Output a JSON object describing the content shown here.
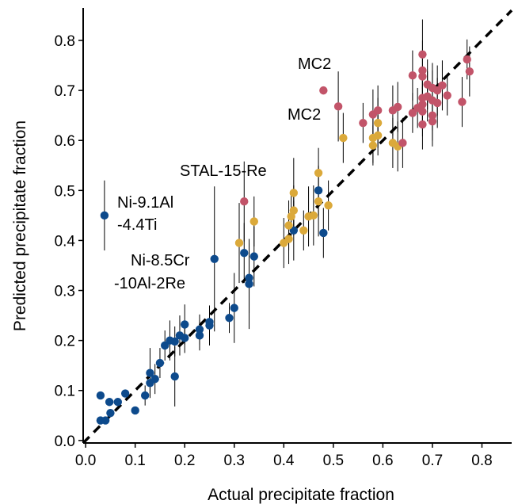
{
  "chart_data": {
    "type": "scatter",
    "title": "",
    "xlabel": "Actual precipitate fraction",
    "ylabel": "Predicted precipitate fraction",
    "xlim": [
      -0.005,
      0.86
    ],
    "ylim": [
      -0.005,
      0.865
    ],
    "xticks": [
      "0.0",
      "0.1",
      "0.2",
      "0.3",
      "0.4",
      "0.5",
      "0.6",
      "0.7",
      "0.8"
    ],
    "yticks": [
      "0.0",
      "0.1",
      "0.2",
      "0.3",
      "0.4",
      "0.5",
      "0.6",
      "0.7",
      "0.8"
    ],
    "grid": false,
    "legend": "none",
    "reference_line": "y = x (dashed)",
    "colors": {
      "blue": "#0d4a8c",
      "yellow": "#dba93a",
      "red": "#c25469",
      "line": "#000000"
    },
    "series": [
      {
        "color": "blue",
        "points": [
          {
            "x": 0.038,
            "y": 0.45,
            "e": 0.07
          },
          {
            "x": 0.03,
            "y": 0.09,
            "e": 0
          },
          {
            "x": 0.03,
            "y": 0.04,
            "e": 0
          },
          {
            "x": 0.04,
            "y": 0.04,
            "e": 0
          },
          {
            "x": 0.048,
            "y": 0.077,
            "e": 0
          },
          {
            "x": 0.05,
            "y": 0.055,
            "e": 0
          },
          {
            "x": 0.065,
            "y": 0.077,
            "e": 0
          },
          {
            "x": 0.08,
            "y": 0.094,
            "e": 0
          },
          {
            "x": 0.1,
            "y": 0.06,
            "e": 0
          },
          {
            "x": 0.12,
            "y": 0.09,
            "e": 0.02
          },
          {
            "x": 0.13,
            "y": 0.115,
            "e": 0.025
          },
          {
            "x": 0.13,
            "y": 0.135,
            "e": 0.05
          },
          {
            "x": 0.14,
            "y": 0.123,
            "e": 0.03
          },
          {
            "x": 0.15,
            "y": 0.155,
            "e": 0.03
          },
          {
            "x": 0.16,
            "y": 0.19,
            "e": 0.03
          },
          {
            "x": 0.17,
            "y": 0.2,
            "e": 0.04
          },
          {
            "x": 0.18,
            "y": 0.198,
            "e": 0.03
          },
          {
            "x": 0.18,
            "y": 0.128,
            "e": 0.06
          },
          {
            "x": 0.19,
            "y": 0.21,
            "e": 0.04
          },
          {
            "x": 0.2,
            "y": 0.205,
            "e": 0.03
          },
          {
            "x": 0.2,
            "y": 0.232,
            "e": 0.04
          },
          {
            "x": 0.23,
            "y": 0.21,
            "e": 0.03
          },
          {
            "x": 0.23,
            "y": 0.222,
            "e": 0.03
          },
          {
            "x": 0.25,
            "y": 0.23,
            "e": 0.04
          },
          {
            "x": 0.25,
            "y": 0.237,
            "e": 0.03
          },
          {
            "x": 0.26,
            "y": 0.363,
            "e": 0.145
          },
          {
            "x": 0.29,
            "y": 0.245,
            "e": 0.03
          },
          {
            "x": 0.3,
            "y": 0.265,
            "e": 0.07
          },
          {
            "x": 0.32,
            "y": 0.375,
            "e": 0.06
          },
          {
            "x": 0.33,
            "y": 0.313,
            "e": 0.09
          },
          {
            "x": 0.33,
            "y": 0.325,
            "e": 0.07
          },
          {
            "x": 0.34,
            "y": 0.368,
            "e": 0.06
          },
          {
            "x": 0.42,
            "y": 0.42,
            "e": 0.06
          },
          {
            "x": 0.47,
            "y": 0.5,
            "e": 0.05
          },
          {
            "x": 0.48,
            "y": 0.415,
            "e": 0.05
          }
        ]
      },
      {
        "color": "yellow",
        "points": [
          {
            "x": 0.31,
            "y": 0.395,
            "e": 0.08
          },
          {
            "x": 0.34,
            "y": 0.438,
            "e": 0.05
          },
          {
            "x": 0.4,
            "y": 0.395,
            "e": 0.05
          },
          {
            "x": 0.41,
            "y": 0.403,
            "e": 0.05
          },
          {
            "x": 0.41,
            "y": 0.43,
            "e": 0.05
          },
          {
            "x": 0.415,
            "y": 0.448,
            "e": 0.05
          },
          {
            "x": 0.42,
            "y": 0.46,
            "e": 0.05
          },
          {
            "x": 0.42,
            "y": 0.495,
            "e": 0.07
          },
          {
            "x": 0.44,
            "y": 0.42,
            "e": 0.04
          },
          {
            "x": 0.45,
            "y": 0.448,
            "e": 0.06
          },
          {
            "x": 0.46,
            "y": 0.45,
            "e": 0.06
          },
          {
            "x": 0.47,
            "y": 0.535,
            "e": 0.05
          },
          {
            "x": 0.47,
            "y": 0.478,
            "e": 0.07
          },
          {
            "x": 0.49,
            "y": 0.47,
            "e": 0.05
          },
          {
            "x": 0.52,
            "y": 0.605,
            "e": 0.05
          },
          {
            "x": 0.58,
            "y": 0.605,
            "e": 0.05
          },
          {
            "x": 0.58,
            "y": 0.59,
            "e": 0.04
          },
          {
            "x": 0.59,
            "y": 0.635,
            "e": 0.05
          },
          {
            "x": 0.59,
            "y": 0.61,
            "e": 0.04
          },
          {
            "x": 0.62,
            "y": 0.595,
            "e": 0.05
          },
          {
            "x": 0.63,
            "y": 0.588,
            "e": 0.05
          }
        ]
      },
      {
        "color": "red",
        "points": [
          {
            "x": 0.32,
            "y": 0.478,
            "e": 0.08
          },
          {
            "x": 0.48,
            "y": 0.7,
            "e": 0
          },
          {
            "x": 0.51,
            "y": 0.668,
            "e": 0.07
          },
          {
            "x": 0.56,
            "y": 0.635,
            "e": 0.04
          },
          {
            "x": 0.58,
            "y": 0.652,
            "e": 0.05
          },
          {
            "x": 0.59,
            "y": 0.66,
            "e": 0.05
          },
          {
            "x": 0.62,
            "y": 0.66,
            "e": 0.05
          },
          {
            "x": 0.63,
            "y": 0.667,
            "e": 0.05
          },
          {
            "x": 0.64,
            "y": 0.595,
            "e": 0.05
          },
          {
            "x": 0.66,
            "y": 0.73,
            "e": 0.05
          },
          {
            "x": 0.66,
            "y": 0.655,
            "e": 0.04
          },
          {
            "x": 0.67,
            "y": 0.665,
            "e": 0.04
          },
          {
            "x": 0.68,
            "y": 0.772,
            "e": 0.07
          },
          {
            "x": 0.68,
            "y": 0.74,
            "e": 0.06
          },
          {
            "x": 0.68,
            "y": 0.728,
            "e": 0.05
          },
          {
            "x": 0.68,
            "y": 0.685,
            "e": 0.06
          },
          {
            "x": 0.68,
            "y": 0.672,
            "e": 0.05
          },
          {
            "x": 0.68,
            "y": 0.658,
            "e": 0.05
          },
          {
            "x": 0.68,
            "y": 0.632,
            "e": 0.05
          },
          {
            "x": 0.69,
            "y": 0.712,
            "e": 0.05
          },
          {
            "x": 0.69,
            "y": 0.688,
            "e": 0.05
          },
          {
            "x": 0.7,
            "y": 0.705,
            "e": 0.05
          },
          {
            "x": 0.7,
            "y": 0.68,
            "e": 0.06
          },
          {
            "x": 0.7,
            "y": 0.65,
            "e": 0.05
          },
          {
            "x": 0.7,
            "y": 0.638,
            "e": 0.05
          },
          {
            "x": 0.71,
            "y": 0.7,
            "e": 0.05
          },
          {
            "x": 0.71,
            "y": 0.675,
            "e": 0.05
          },
          {
            "x": 0.72,
            "y": 0.71,
            "e": 0.05
          },
          {
            "x": 0.73,
            "y": 0.69,
            "e": 0.04
          },
          {
            "x": 0.76,
            "y": 0.677,
            "e": 0.05
          },
          {
            "x": 0.77,
            "y": 0.762,
            "e": 0.04
          },
          {
            "x": 0.775,
            "y": 0.738,
            "e": 0.05
          }
        ]
      }
    ],
    "annotations": [
      {
        "text": "Ni-9.1Al"
      },
      {
        "text": "-4.4Ti"
      },
      {
        "text": "Ni-8.5Cr"
      },
      {
        "text": "-10Al-2Re"
      },
      {
        "text": "STAL-15-Re"
      },
      {
        "text": "MC2"
      },
      {
        "text": "MC2"
      }
    ]
  }
}
